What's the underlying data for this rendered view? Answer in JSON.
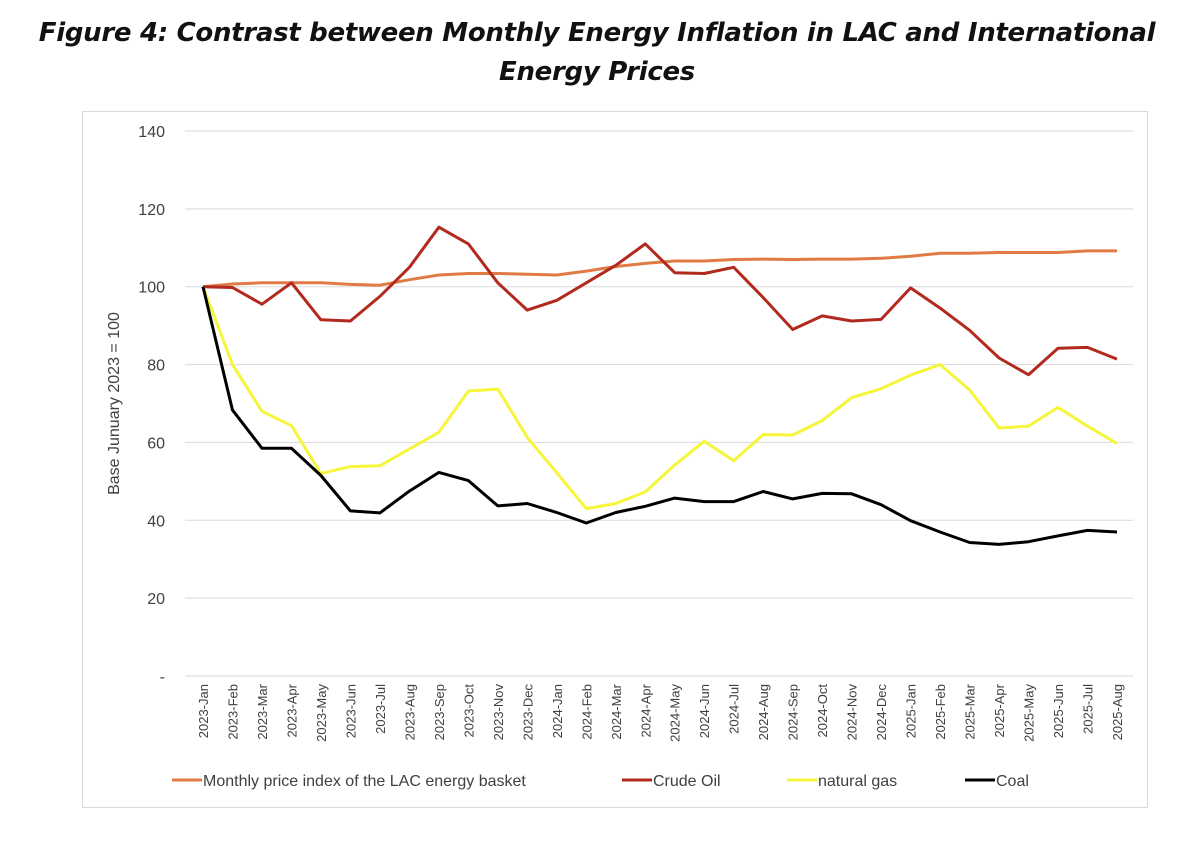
{
  "chart_data": {
    "type": "line",
    "title": "Figure 4: Contrast between Monthly Energy Inflation in LAC and International Energy Prices",
    "ylabel": "Base Junuary 2023 = 100",
    "xlabel": "",
    "ylim": [
      0,
      140
    ],
    "yticks": [
      0,
      20,
      40,
      60,
      80,
      100,
      120,
      140
    ],
    "ytick_labels": [
      "-",
      "20",
      "40",
      "60",
      "80",
      "100",
      "120",
      "140"
    ],
    "grid": true,
    "legend": "bottom",
    "categories": [
      "2023-Jan",
      "2023-Feb",
      "2023-Mar",
      "2023-Apr",
      "2023-May",
      "2023-Jun",
      "2023-Jul",
      "2023-Aug",
      "2023-Sep",
      "2023-Oct",
      "2023-Nov",
      "2023-Dec",
      "2024-Jan",
      "2024-Feb",
      "2024-Mar",
      "2024-Apr",
      "2024-May",
      "2024-Jun",
      "2024-Jul",
      "2024-Aug",
      "2024-Sep",
      "2024-Oct",
      "2024-Nov",
      "2024-Dec",
      "2025-Jan",
      "2025-Feb",
      "2025-Mar",
      "2025-Apr",
      "2025-May",
      "2025-Jun",
      "2025-Jul",
      "2025-Aug"
    ],
    "series": [
      {
        "name": "Monthly price index of the LAC energy basket",
        "color": "#e07b45",
        "values": [
          100,
          100.7,
          101,
          101,
          101,
          100.6,
          100.4,
          101.8,
          103,
          103.4,
          103.4,
          103.2,
          103,
          104,
          105.2,
          106,
          106.6,
          106.6,
          107,
          107.1,
          107,
          107.1,
          107.1,
          107.3,
          107.8,
          108.6,
          108.6,
          108.8,
          108.8,
          108.8,
          109.2,
          109.2
        ]
      },
      {
        "name": "Crude Oil",
        "color": "#b22a1e",
        "values": [
          100,
          99.8,
          95.5,
          101,
          91.5,
          91.2,
          97.5,
          105,
          115.3,
          111,
          101,
          94,
          96.5,
          101,
          105.5,
          111,
          103.6,
          103.4,
          105,
          97.2,
          89,
          92.5,
          91.2,
          91.6,
          99.7,
          94.5,
          88.8,
          81.7,
          77.4,
          84.2,
          84.4,
          81.4
        ]
      },
      {
        "name": "natural gas",
        "color": "#f5f53a",
        "values": [
          100,
          80,
          68,
          64.3,
          52,
          53.8,
          54,
          58.3,
          62.6,
          73.2,
          73.7,
          61.3,
          52.2,
          43,
          44.3,
          47.3,
          54.2,
          60.3,
          55.3,
          62,
          61.9,
          65.6,
          71.5,
          73.8,
          77.3,
          80,
          73.5,
          63.7,
          64.2,
          69,
          64.2,
          59.7
        ]
      },
      {
        "name": "Coal",
        "color": "#000000",
        "values": [
          100,
          68.3,
          58.5,
          58.5,
          51.5,
          42.4,
          41.9,
          47.5,
          52.3,
          50.2,
          43.7,
          44.3,
          42,
          39.3,
          42,
          43.6,
          45.7,
          44.8,
          44.8,
          47.4,
          45.5,
          46.9,
          46.8,
          44,
          39.9,
          37,
          34.3,
          33.8,
          34.5,
          36,
          37.4,
          37
        ]
      }
    ]
  }
}
